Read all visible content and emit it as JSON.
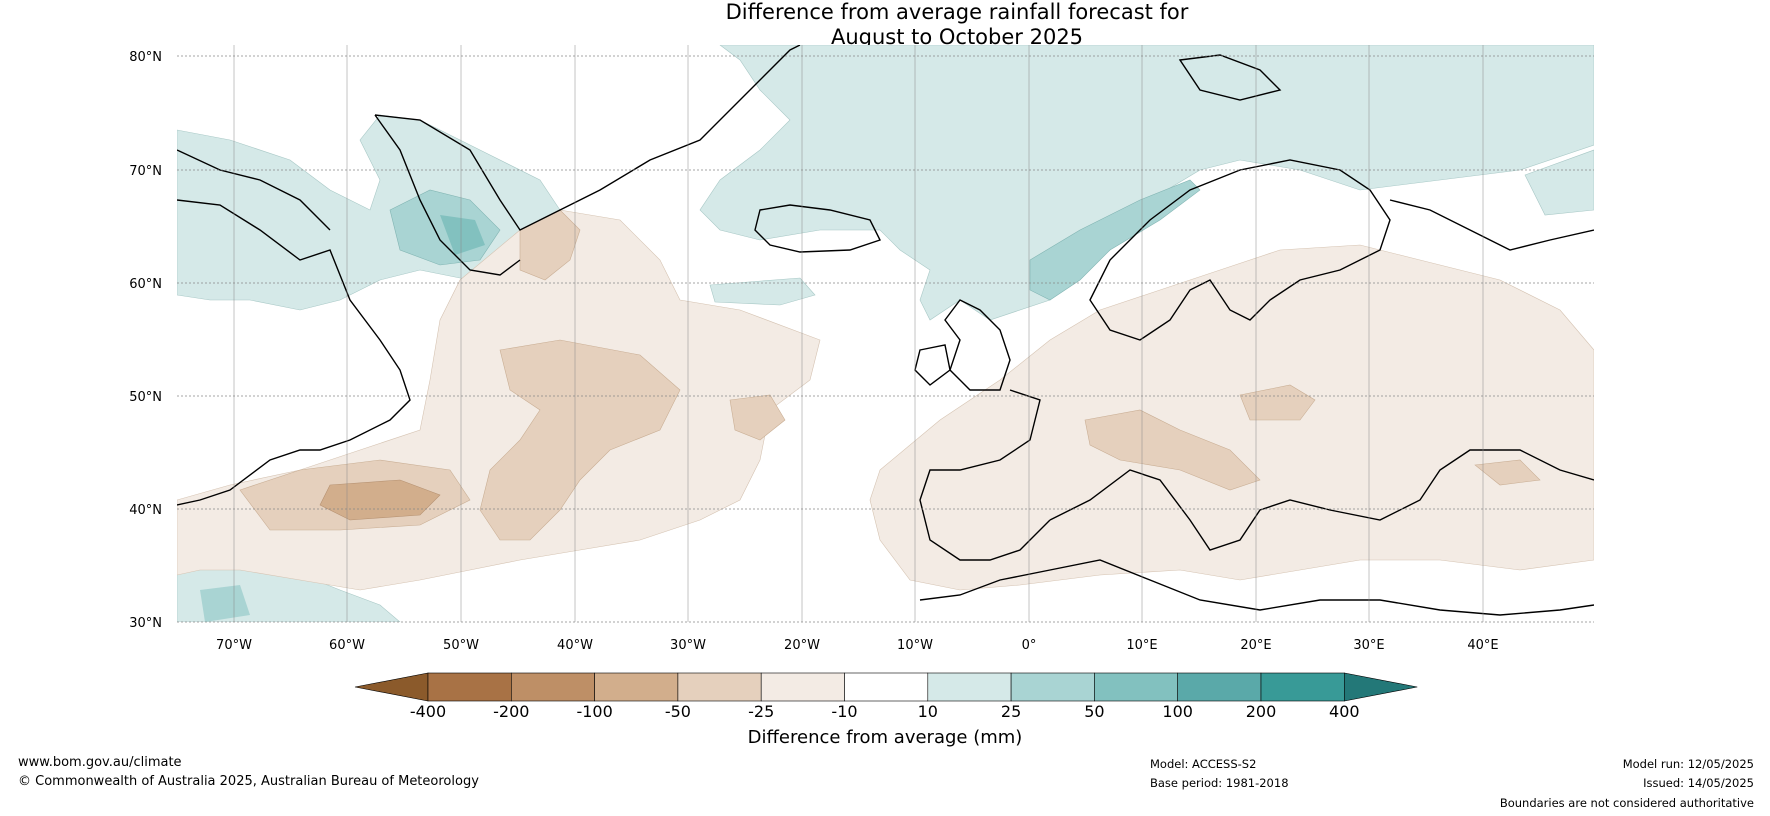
{
  "title_line1": "Difference from average rainfall forecast for",
  "title_line2": "August to October 2025",
  "latitudes": [
    "80°N",
    "70°N",
    "60°N",
    "50°N",
    "40°N",
    "30°N"
  ],
  "longitudes": [
    "70°W",
    "60°W",
    "50°W",
    "40°W",
    "30°W",
    "20°W",
    "10°W",
    "0°",
    "10°E",
    "20°E",
    "30°E",
    "40°E"
  ],
  "colorbar": {
    "title": "Difference from average (mm)",
    "ticks": [
      "-400",
      "-200",
      "-100",
      "-50",
      "-25",
      "-10",
      "10",
      "25",
      "50",
      "100",
      "200",
      "400"
    ],
    "colors": [
      "#8b5a2b",
      "#a87245",
      "#be8f66",
      "#d2ae8c",
      "#e5d0bd",
      "#f3ebe4",
      "#ffffff",
      "#d5e9e8",
      "#a9d4d3",
      "#82c1bf",
      "#5aa9a9",
      "#389a97",
      "#237878"
    ]
  },
  "footer": {
    "website": "www.bom.gov.au/climate",
    "copyright": "© Commonwealth of Australia 2025, Australian Bureau of Meteorology",
    "model": "Model: ACCESS-S2",
    "base_period": "Base period: 1981-2018",
    "model_run": "Model run: 12/05/2025",
    "issued": "Issued: 14/05/2025",
    "disclaimer": "Boundaries are not considered authoritative"
  }
}
